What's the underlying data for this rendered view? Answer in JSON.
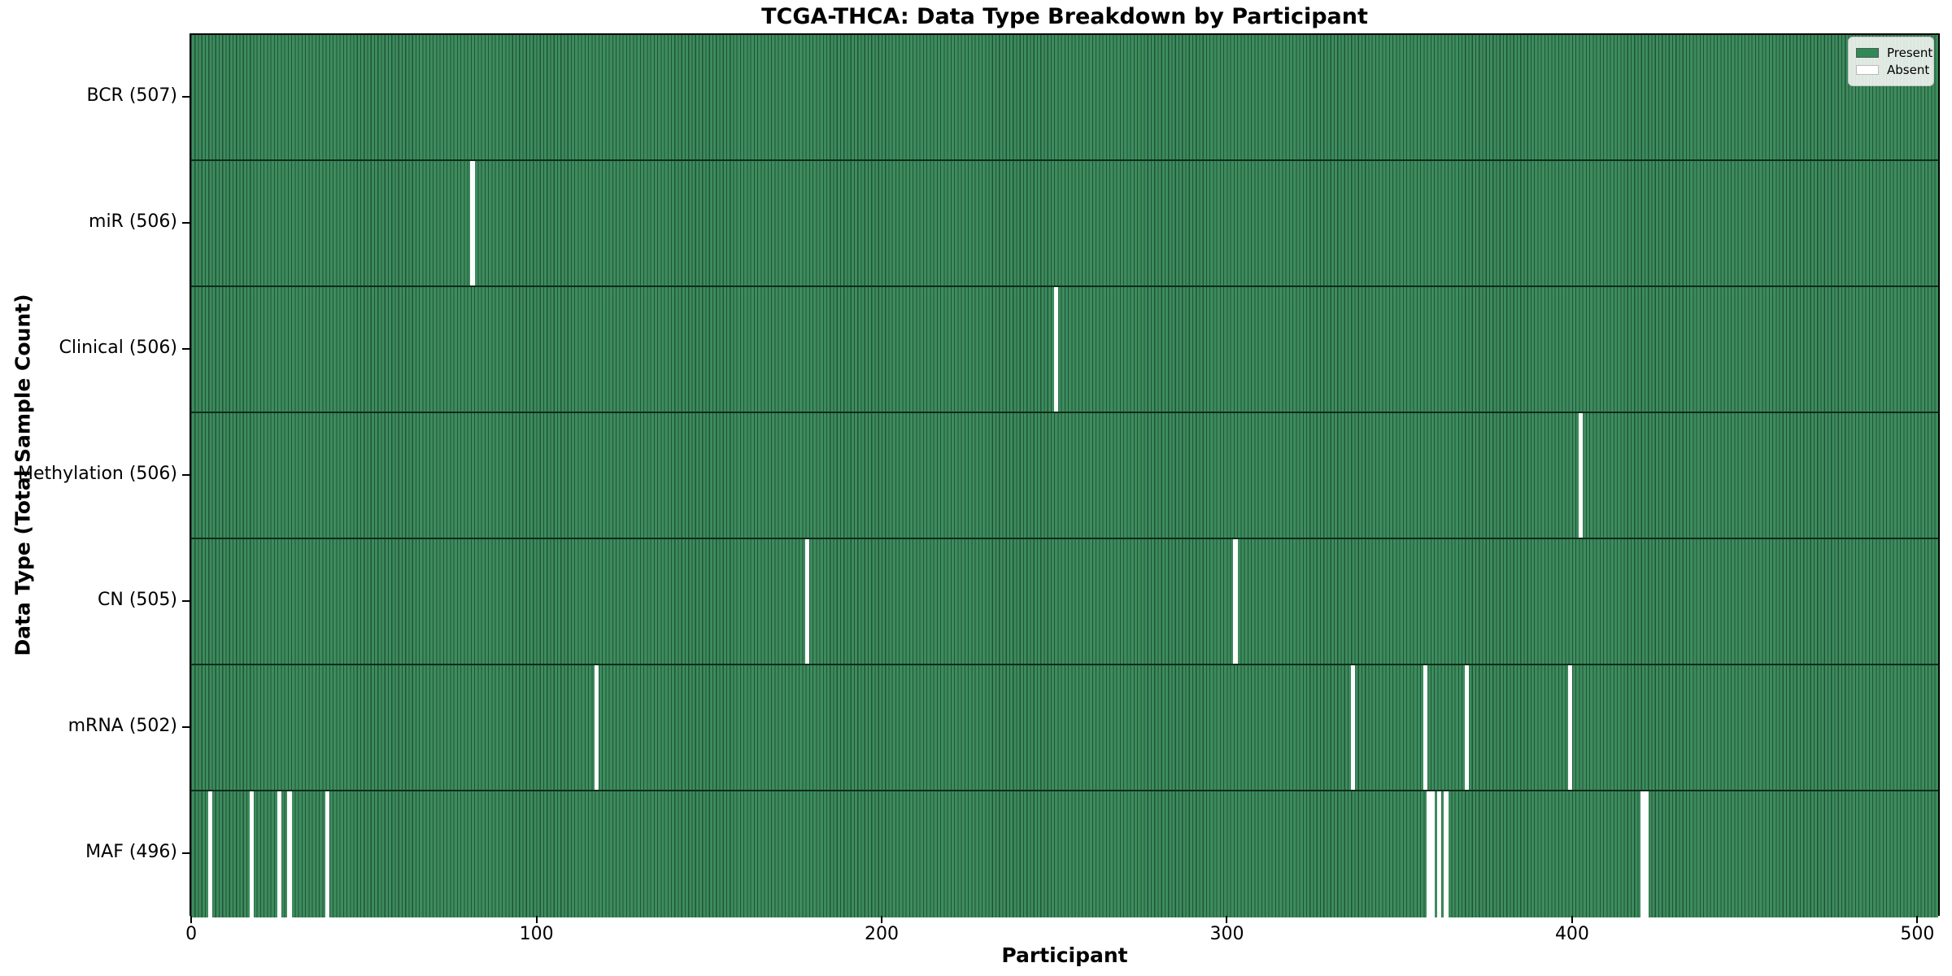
{
  "figure": {
    "title": "TCGA-THCA: Data Type Breakdown by Participant",
    "xlabel": "Participant",
    "ylabel": "Data Type (Total Sample Count)"
  },
  "legend": {
    "items": [
      {
        "label": "Present",
        "color": "#2e8b57"
      },
      {
        "label": "Absent",
        "color": "#ffffff"
      }
    ]
  },
  "colors": {
    "present_fill": "#3d8c5e",
    "bar_edge_line": "#215437",
    "absent": "#ffffff",
    "row_separator": "#0d2c1b",
    "axes_frame": "#000000"
  },
  "chart_data": {
    "type": "heatmap",
    "title": "TCGA-THCA: Data Type Breakdown by Participant",
    "xlabel": "Participant",
    "ylabel": "Data Type (Total Sample Count)",
    "n_participants": 507,
    "x_ticks": [
      0,
      100,
      200,
      300,
      400,
      500
    ],
    "xlim": [
      -0.5,
      506.5
    ],
    "grid": false,
    "legend_position": "upper right",
    "legend_entries": [
      "Present",
      "Absent"
    ],
    "rows": [
      {
        "label": "BCR (507)",
        "data_type": "BCR",
        "total_sample_count": 507,
        "absent_participants": []
      },
      {
        "label": "miR (506)",
        "data_type": "miR",
        "total_sample_count": 506,
        "absent_participants": [
          81
        ]
      },
      {
        "label": "Clinical (506)",
        "data_type": "Clinical",
        "total_sample_count": 506,
        "absent_participants": [
          250
        ]
      },
      {
        "label": "Methylation (506)",
        "data_type": "Methylation",
        "total_sample_count": 506,
        "absent_participants": [
          402
        ]
      },
      {
        "label": "CN (505)",
        "data_type": "CN",
        "total_sample_count": 505,
        "absent_participants": [
          178,
          302
        ]
      },
      {
        "label": "mRNA (502)",
        "data_type": "mRNA",
        "total_sample_count": 502,
        "absent_participants": [
          117,
          336,
          357,
          369,
          399
        ]
      },
      {
        "label": "MAF (496)",
        "data_type": "MAF",
        "total_sample_count": 496,
        "absent_participants": [
          5,
          17,
          25,
          28,
          39,
          358,
          359,
          361,
          363,
          420,
          421
        ]
      }
    ]
  }
}
